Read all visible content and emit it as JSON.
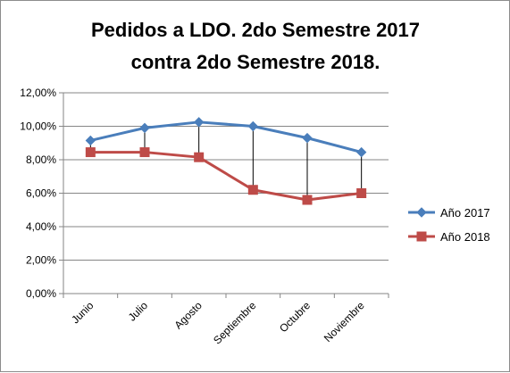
{
  "chart_data": {
    "type": "line",
    "title_lines": [
      "Pedidos a LDO. 2do Semestre 2017",
      "contra 2do Semestre 2018."
    ],
    "categories": [
      "Junio",
      "Julio",
      "Agosto",
      "Septiembre",
      "Octubre",
      "Noviembre"
    ],
    "series": [
      {
        "name": "Año 2017",
        "values": [
          9.15,
          9.9,
          10.25,
          10.0,
          9.3,
          8.45
        ],
        "color": "#4a7ebb",
        "marker": "diamond"
      },
      {
        "name": "Año 2018",
        "values": [
          8.45,
          8.45,
          8.15,
          6.2,
          5.6,
          6.0
        ],
        "color": "#be4b48",
        "marker": "square"
      }
    ],
    "y_ticks": [
      "0,00%",
      "2,00%",
      "4,00%",
      "6,00%",
      "8,00%",
      "10,00%",
      "12,00%"
    ],
    "ylim": [
      0,
      12
    ],
    "y_unit": "percent",
    "grid": true,
    "high_low_lines": true,
    "legend_position": "right"
  }
}
